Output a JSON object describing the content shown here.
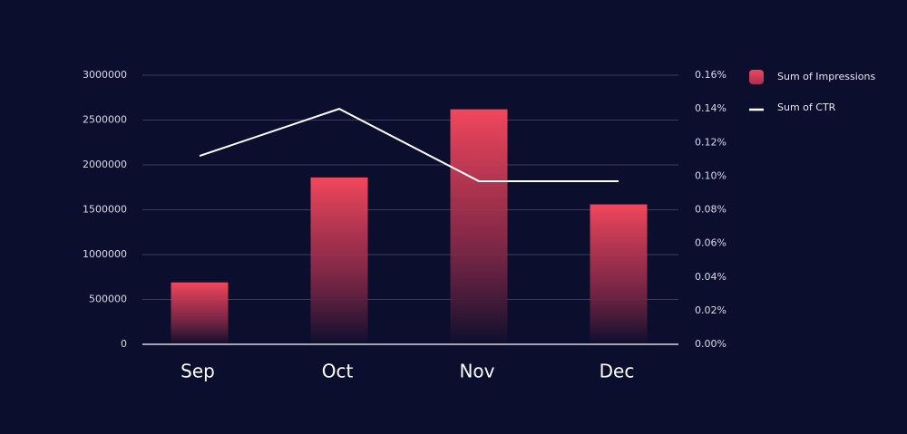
{
  "chart_data": {
    "type": "combo",
    "categories": [
      "Sep",
      "Oct",
      "Nov",
      "Dec"
    ],
    "series": [
      {
        "name": "Sum of Impressions",
        "type": "bar",
        "color": "#f2475c",
        "values": [
          690000,
          1860000,
          2620000,
          1560000
        ]
      },
      {
        "name": "Sum of CTR",
        "type": "line",
        "axis": "y2",
        "color": "#ffffff",
        "values": [
          0.112,
          0.14,
          0.097,
          0.097
        ]
      }
    ],
    "ylim": [
      0,
      3000000
    ],
    "yticks": [
      0,
      500000,
      1000000,
      1500000,
      2000000,
      2500000,
      3000000
    ],
    "y2lim": [
      0,
      0.16
    ],
    "y2ticks": [
      {
        "value": 0,
        "label": "0.00%"
      },
      {
        "value": 0.02,
        "label": "0.02%"
      },
      {
        "value": 0.04,
        "label": "0.04%"
      },
      {
        "value": 0.06,
        "label": "0.06%"
      },
      {
        "value": 0.08,
        "label": "0.08%"
      },
      {
        "value": 0.1,
        "label": "0.10%"
      },
      {
        "value": 0.12,
        "label": "0.12%"
      },
      {
        "value": 0.14,
        "label": "0.14%"
      },
      {
        "value": 0.16,
        "label": "0.16%"
      }
    ],
    "grid": true,
    "legend": "right"
  }
}
